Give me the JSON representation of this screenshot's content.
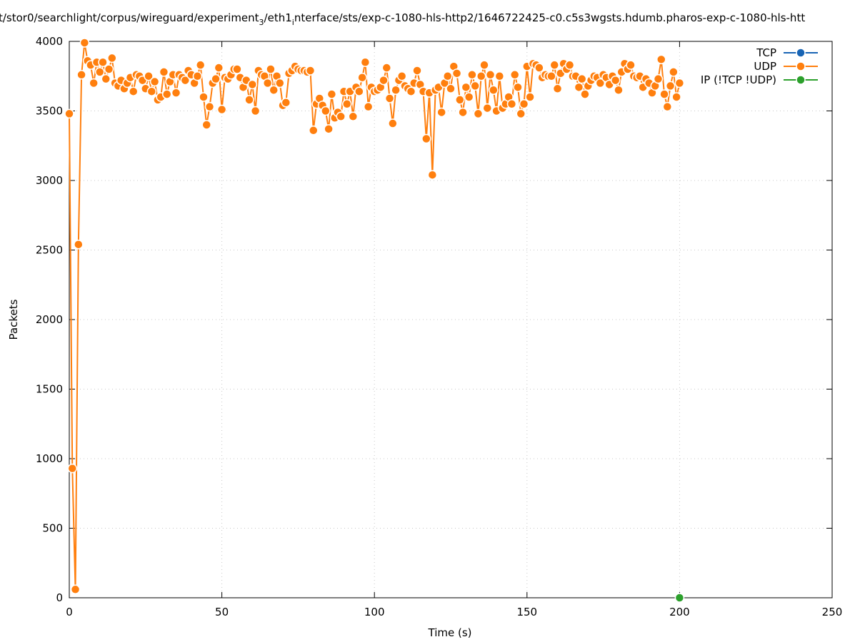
{
  "chart_data": {
    "type": "line",
    "title_parts": [
      {
        "text": "t/stor0/searchlight/corpus/wireguard/experiment",
        "sub": false
      },
      {
        "text": "3",
        "sub": true
      },
      {
        "text": "/eth1",
        "sub": false
      },
      {
        "text": "i",
        "sub": true
      },
      {
        "text": "nterface/sts/exp-c-1080-hls-http2/1646722425-c0.c5s3wgsts.hdumb.pharos-exp-c-1080-hls-htt",
        "sub": false
      }
    ],
    "xlabel": "Time (s)",
    "ylabel": "Packets",
    "xlim": [
      0,
      250
    ],
    "xticks": [
      0,
      50,
      100,
      150,
      200,
      250
    ],
    "ylim": [
      0,
      4000
    ],
    "yticks": [
      0,
      500,
      1000,
      1500,
      2000,
      2500,
      3000,
      3500,
      4000
    ],
    "grid": true,
    "legend": "top-right",
    "series": [
      {
        "name": "TCP",
        "color": "#1864b4",
        "x": [],
        "values": []
      },
      {
        "name": "UDP",
        "color": "#ff7f0e",
        "x": [
          0,
          1,
          2,
          3,
          4,
          5,
          6,
          7,
          8,
          9,
          10,
          11,
          12,
          13,
          14,
          15,
          16,
          17,
          18,
          19,
          20,
          21,
          22,
          23,
          24,
          25,
          26,
          27,
          28,
          29,
          30,
          31,
          32,
          33,
          34,
          35,
          36,
          37,
          38,
          39,
          40,
          41,
          42,
          43,
          44,
          45,
          46,
          47,
          48,
          49,
          50,
          51,
          52,
          53,
          54,
          55,
          56,
          57,
          58,
          59,
          60,
          61,
          62,
          63,
          64,
          65,
          66,
          67,
          68,
          69,
          70,
          71,
          72,
          73,
          74,
          75,
          76,
          77,
          78,
          79,
          80,
          81,
          82,
          83,
          84,
          85,
          86,
          87,
          88,
          89,
          90,
          91,
          92,
          93,
          94,
          95,
          96,
          97,
          98,
          99,
          100,
          101,
          102,
          103,
          104,
          105,
          106,
          107,
          108,
          109,
          110,
          111,
          112,
          113,
          114,
          115,
          116,
          117,
          118,
          119,
          120,
          121,
          122,
          123,
          124,
          125,
          126,
          127,
          128,
          129,
          130,
          131,
          132,
          133,
          134,
          135,
          136,
          137,
          138,
          139,
          140,
          141,
          142,
          143,
          144,
          145,
          146,
          147,
          148,
          149,
          150,
          151,
          152,
          153,
          154,
          155,
          156,
          157,
          158,
          159,
          160,
          161,
          162,
          163,
          164,
          165,
          166,
          167,
          168,
          169,
          170,
          171,
          172,
          173,
          174,
          175,
          176,
          177,
          178,
          179,
          180,
          181,
          182,
          183,
          184,
          185,
          186,
          187,
          188,
          189,
          190,
          191,
          192,
          193,
          194,
          195,
          196,
          197,
          198,
          199,
          200
        ],
        "values": [
          3480,
          930,
          60,
          2540,
          3760,
          3990,
          3860,
          3830,
          3700,
          3850,
          3780,
          3850,
          3730,
          3800,
          3880,
          3700,
          3680,
          3720,
          3660,
          3700,
          3740,
          3640,
          3760,
          3750,
          3720,
          3660,
          3750,
          3640,
          3710,
          3580,
          3600,
          3780,
          3620,
          3710,
          3760,
          3630,
          3760,
          3740,
          3720,
          3790,
          3760,
          3700,
          3750,
          3830,
          3600,
          3400,
          3530,
          3700,
          3730,
          3810,
          3510,
          3740,
          3730,
          3760,
          3800,
          3800,
          3740,
          3670,
          3720,
          3580,
          3690,
          3500,
          3790,
          3760,
          3750,
          3700,
          3800,
          3650,
          3750,
          3700,
          3540,
          3560,
          3770,
          3790,
          3820,
          3800,
          3790,
          3790,
          3780,
          3790,
          3360,
          3550,
          3590,
          3540,
          3500,
          3370,
          3620,
          3450,
          3490,
          3460,
          3640,
          3550,
          3640,
          3460,
          3670,
          3640,
          3740,
          3850,
          3530,
          3670,
          3640,
          3650,
          3670,
          3720,
          3810,
          3590,
          3410,
          3650,
          3720,
          3750,
          3680,
          3660,
          3640,
          3700,
          3790,
          3690,
          3640,
          3300,
          3630,
          3040,
          3650,
          3670,
          3490,
          3700,
          3750,
          3660,
          3820,
          3770,
          3580,
          3490,
          3670,
          3600,
          3760,
          3680,
          3480,
          3750,
          3830,
          3520,
          3760,
          3650,
          3500,
          3750,
          3520,
          3550,
          3600,
          3550,
          3760,
          3670,
          3480,
          3550,
          3820,
          3600,
          3840,
          3830,
          3810,
          3740,
          3760,
          3750,
          3750,
          3830,
          3660,
          3770,
          3840,
          3800,
          3830,
          3750,
          3750,
          3670,
          3730,
          3620,
          3680,
          3720,
          3750,
          3740,
          3700,
          3760,
          3740,
          3690,
          3750,
          3720,
          3650,
          3780,
          3840,
          3800,
          3830,
          3750,
          3740,
          3750,
          3670,
          3730,
          3700,
          3630,
          3680,
          3730,
          3870,
          3620,
          3530,
          3680,
          3780,
          3600,
          3700
        ]
      },
      {
        "name": "IP (!TCP  !UDP)",
        "color": "#2ca02c",
        "x": [
          200
        ],
        "values": [
          0
        ]
      }
    ]
  }
}
